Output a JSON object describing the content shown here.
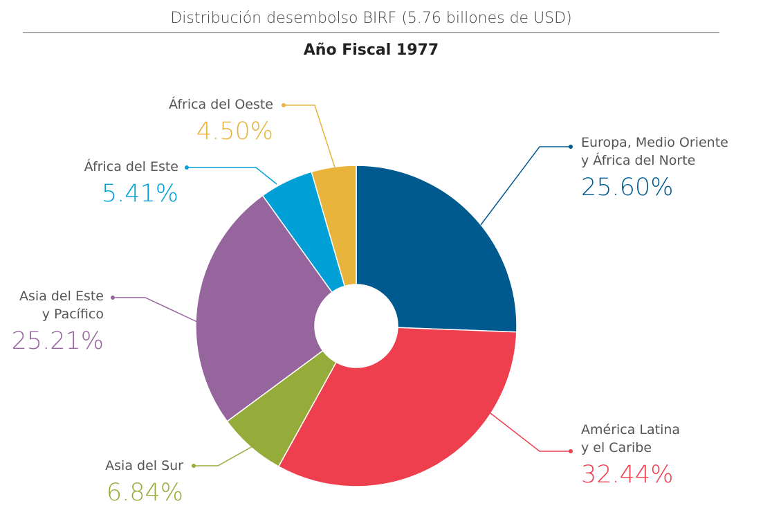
{
  "chart_data": {
    "type": "pie",
    "title": "Distribución desembolso BIRF (5.76 billones de USD)",
    "subtitle": "Año Fiscal 1977",
    "donut": true,
    "categories": [
      "Europa, Medio Oriente\ny África del Norte",
      "América Latina\ny el Caribe",
      "Asia del Sur",
      "Asia del Este\ny Pacífico",
      "África del Este",
      "África del Oeste"
    ],
    "values": [
      25.6,
      32.44,
      6.84,
      25.21,
      5.41,
      4.5
    ],
    "value_labels": [
      "25.60%",
      "32.44%",
      "6.84%",
      "25.21%",
      "5.41%",
      "4.50%"
    ],
    "colors": [
      "#005a8f",
      "#ee3f4f",
      "#95ab3a",
      "#97659e",
      "#00a0d6",
      "#e8b43c"
    ]
  }
}
